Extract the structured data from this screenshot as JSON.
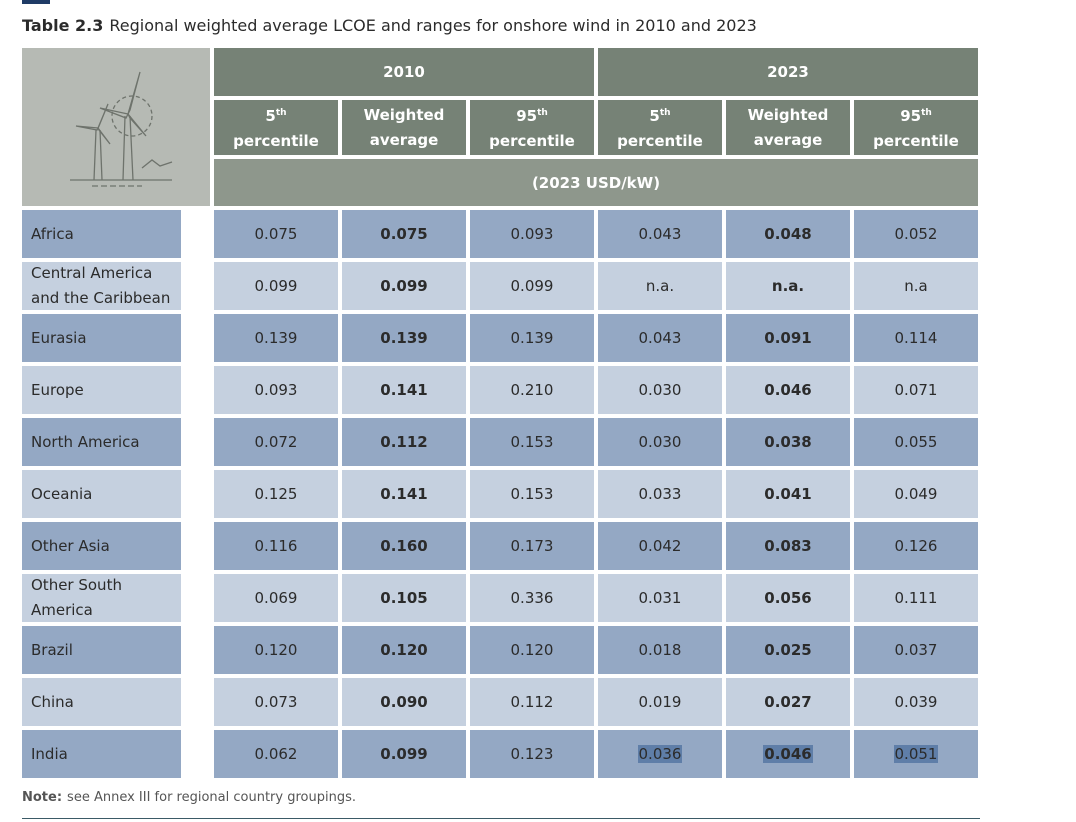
{
  "title": {
    "label": "Table 2.3",
    "text": "Regional weighted average LCOE and ranges for onshore wind in 2010 and 2023"
  },
  "table": {
    "groups": [
      "2010",
      "2023"
    ],
    "columns": [
      {
        "num": "5",
        "sup": "th",
        "text": "percentile"
      },
      {
        "text": "Weighted average"
      },
      {
        "num": "95",
        "sup": "th",
        "text": "percentile"
      },
      {
        "num": "5",
        "sup": "th",
        "text": "percentile"
      },
      {
        "text": "Weighted average"
      },
      {
        "num": "95",
        "sup": "th",
        "text": "percentile"
      }
    ],
    "unit": "(2023 USD/kW)",
    "rows": [
      {
        "label": "Africa",
        "values": [
          "0.075",
          "0.075",
          "0.093",
          "0.043",
          "0.048",
          "0.052"
        ]
      },
      {
        "label": "Central America and the Caribbean",
        "values": [
          "0.099",
          "0.099",
          "0.099",
          "n.a.",
          "n.a.",
          "n.a"
        ]
      },
      {
        "label": "Eurasia",
        "values": [
          "0.139",
          "0.139",
          "0.139",
          "0.043",
          "0.091",
          "0.114"
        ]
      },
      {
        "label": "Europe",
        "values": [
          "0.093",
          "0.141",
          "0.210",
          "0.030",
          "0.046",
          "0.071"
        ]
      },
      {
        "label": "North America",
        "values": [
          "0.072",
          "0.112",
          "0.153",
          "0.030",
          "0.038",
          "0.055"
        ]
      },
      {
        "label": "Oceania",
        "values": [
          "0.125",
          "0.141",
          "0.153",
          "0.033",
          "0.041",
          "0.049"
        ]
      },
      {
        "label": "Other Asia",
        "values": [
          "0.116",
          "0.160",
          "0.173",
          "0.042",
          "0.083",
          "0.126"
        ]
      },
      {
        "label": "Other South America",
        "values": [
          "0.069",
          "0.105",
          "0.336",
          "0.031",
          "0.056",
          "0.111"
        ]
      },
      {
        "label": "Brazil",
        "values": [
          "0.120",
          "0.120",
          "0.120",
          "0.018",
          "0.025",
          "0.037"
        ]
      },
      {
        "label": "China",
        "values": [
          "0.073",
          "0.090",
          "0.112",
          "0.019",
          "0.027",
          "0.039"
        ]
      },
      {
        "label": "India",
        "values": [
          "0.062",
          "0.099",
          "0.123",
          "0.036",
          "0.046",
          "0.051"
        ]
      }
    ]
  },
  "note": {
    "label": "Note:",
    "text": "see Annex III for regional country groupings."
  }
}
